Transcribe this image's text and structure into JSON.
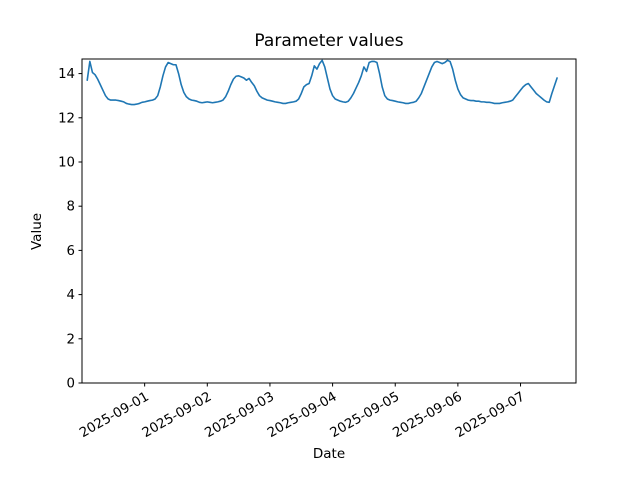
{
  "title": "Parameter values",
  "chart_data": {
    "type": "line",
    "title": "Parameter values",
    "xlabel": "Date",
    "ylabel": "Value",
    "line_color": "#1f77b4",
    "spine_color": "#000000",
    "background": "#ffffff",
    "grid": false,
    "legend_position": "none",
    "ylim": [
      0,
      14.66
    ],
    "y_ticks": [
      0,
      2,
      4,
      6,
      8,
      10,
      12,
      14
    ],
    "xlim": [
      "2025-08-31 00:00",
      "2025-09-07 21:15"
    ],
    "x_ticks": [
      "2025-09-01",
      "2025-09-02",
      "2025-09-03",
      "2025-09-04",
      "2025-09-05",
      "2025-09-06",
      "2025-09-07"
    ],
    "x_tick_rotation_deg": 30,
    "series": [
      {
        "name": "Parameter values",
        "start": "2025-08-31 02:00",
        "step_hours": 1,
        "values": [
          13.7,
          14.55,
          14.05,
          13.95,
          13.75,
          13.5,
          13.25,
          13.0,
          12.85,
          12.8,
          12.8,
          12.8,
          12.78,
          12.75,
          12.72,
          12.65,
          12.62,
          12.6,
          12.6,
          12.62,
          12.65,
          12.7,
          12.72,
          12.75,
          12.78,
          12.8,
          12.85,
          13.0,
          13.4,
          13.9,
          14.3,
          14.5,
          14.45,
          14.4,
          14.4,
          14.0,
          13.5,
          13.15,
          12.95,
          12.85,
          12.8,
          12.78,
          12.75,
          12.7,
          12.68,
          12.7,
          12.72,
          12.7,
          12.68,
          12.7,
          12.72,
          12.75,
          12.8,
          12.95,
          13.2,
          13.5,
          13.75,
          13.88,
          13.9,
          13.85,
          13.8,
          13.7,
          13.78,
          13.6,
          13.45,
          13.2,
          13.0,
          12.9,
          12.85,
          12.8,
          12.78,
          12.75,
          12.72,
          12.7,
          12.68,
          12.65,
          12.65,
          12.68,
          12.7,
          12.72,
          12.75,
          12.85,
          13.1,
          13.4,
          13.5,
          13.55,
          13.9,
          14.35,
          14.2,
          14.45,
          14.6,
          14.3,
          13.8,
          13.3,
          13.0,
          12.85,
          12.8,
          12.75,
          12.72,
          12.7,
          12.75,
          12.9,
          13.1,
          13.35,
          13.6,
          13.9,
          14.3,
          14.1,
          14.5,
          14.55,
          14.55,
          14.5,
          14.0,
          13.4,
          13.0,
          12.85,
          12.8,
          12.78,
          12.75,
          12.72,
          12.7,
          12.68,
          12.65,
          12.65,
          12.68,
          12.7,
          12.75,
          12.9,
          13.1,
          13.4,
          13.7,
          14.0,
          14.3,
          14.5,
          14.55,
          14.5,
          14.45,
          14.5,
          14.6,
          14.55,
          14.2,
          13.7,
          13.3,
          13.05,
          12.9,
          12.85,
          12.8,
          12.78,
          12.78,
          12.75,
          12.75,
          12.72,
          12.72,
          12.7,
          12.7,
          12.68,
          12.65,
          12.65,
          12.65,
          12.68,
          12.7,
          12.72,
          12.75,
          12.8,
          12.95,
          13.1,
          13.25,
          13.4,
          13.5,
          13.55,
          13.4,
          13.25,
          13.1,
          13.0,
          12.9,
          12.8,
          12.72,
          12.7,
          13.1,
          13.45,
          13.8
        ]
      }
    ]
  }
}
